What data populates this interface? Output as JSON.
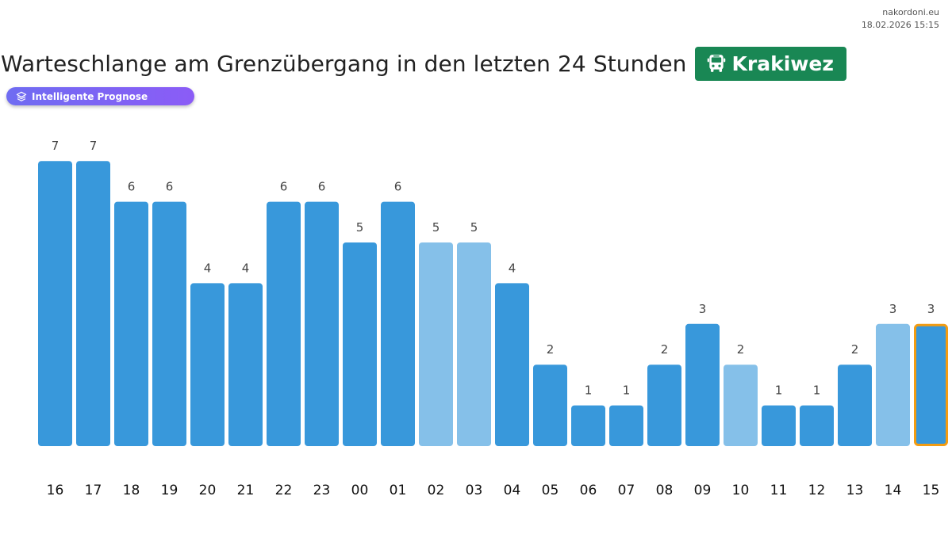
{
  "header": {
    "site": "nakordoni.eu",
    "datetime": "18.02.2026 15:15",
    "title": "Warteschlange am Grenzübergang in den letzten 24 Stunden",
    "crossing": "Krakiwez",
    "crossing_icon": "bus-icon",
    "forecast_label": "Intelligente Prognose",
    "forecast_icon": "layers-icon"
  },
  "colors": {
    "actual": "#3898db",
    "forecast": "#85c0e9",
    "current_border": "#f39c12",
    "badge": "#198754"
  },
  "chart_data": {
    "type": "bar",
    "categories": [
      "16",
      "17",
      "18",
      "19",
      "20",
      "21",
      "22",
      "23",
      "00",
      "01",
      "02",
      "03",
      "04",
      "05",
      "06",
      "07",
      "08",
      "09",
      "10",
      "11",
      "12",
      "13",
      "14",
      "15"
    ],
    "values": [
      7,
      7,
      6,
      6,
      4,
      4,
      6,
      6,
      5,
      6,
      5,
      5,
      4,
      2,
      1,
      1,
      2,
      3,
      2,
      1,
      1,
      2,
      3,
      3
    ],
    "forecast": [
      false,
      false,
      false,
      false,
      false,
      false,
      false,
      false,
      false,
      false,
      true,
      true,
      false,
      false,
      false,
      false,
      false,
      false,
      true,
      false,
      false,
      false,
      true,
      false
    ],
    "highlight_index": 23,
    "title": "Warteschlange am Grenzübergang in den letzten 24 Stunden",
    "xlabel": "",
    "ylabel": "",
    "ylim": [
      0,
      7
    ],
    "grid": false,
    "data_labels": true
  }
}
